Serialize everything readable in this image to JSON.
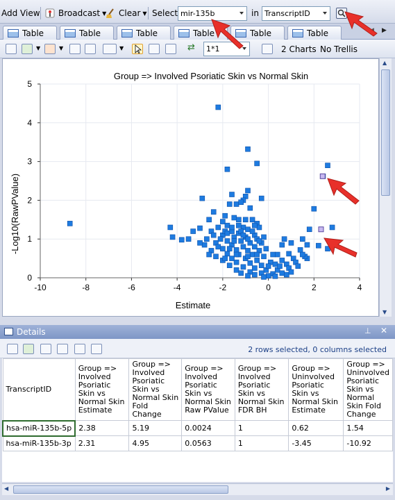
{
  "toolbar": {
    "add_view": "Add View",
    "broadcast": "Broadcast",
    "clear": "Clear",
    "select_label": "Select",
    "select_value": "mir-135b",
    "in_label": "in",
    "in_value": "TranscriptID"
  },
  "tabs": [
    {
      "label": "Table"
    },
    {
      "label": "Table"
    },
    {
      "label": "Table"
    },
    {
      "label": "Table"
    },
    {
      "label": "Table"
    },
    {
      "label": "Table"
    }
  ],
  "chart_toolbar": {
    "layout_value": "1*1",
    "charts_label": "2 Charts",
    "trellis_label": "No Trellis"
  },
  "chart_data": {
    "type": "scatter",
    "title": "Group => Involved Psoriatic Skin vs Normal Skin",
    "xlabel": "Estimate",
    "ylabel": "-Log10(RawPValue)",
    "xlim": [
      -10,
      4
    ],
    "ylim": [
      0,
      5
    ],
    "xticks": [
      "-10",
      "-8",
      "-6",
      "-4",
      "-2",
      "0",
      "2",
      "4"
    ],
    "yticks": [
      "0",
      "1",
      "2",
      "3",
      "4",
      "5"
    ],
    "grid": true,
    "colors": {
      "point": "#1e7be0",
      "point_edge": "#0b4fa8",
      "selected": "#c7b8f0",
      "selected_edge": "#5a4aa0"
    },
    "points": [
      [
        -8.7,
        1.4
      ],
      [
        -2.2,
        4.4
      ],
      [
        -0.9,
        3.32
      ],
      [
        -0.5,
        2.95
      ],
      [
        -1.8,
        2.8
      ],
      [
        2.6,
        2.9
      ],
      [
        2.4,
        2.62
      ],
      [
        -0.9,
        2.25
      ],
      [
        -1.0,
        2.1
      ],
      [
        -1.6,
        2.15
      ],
      [
        -2.9,
        2.05
      ],
      [
        -1.1,
        2.0
      ],
      [
        -0.3,
        2.05
      ],
      [
        -1.7,
        1.9
      ],
      [
        -1.4,
        1.9
      ],
      [
        -1.2,
        1.95
      ],
      [
        -0.8,
        1.8
      ],
      [
        -2.4,
        1.7
      ],
      [
        2.0,
        1.78
      ],
      [
        -1.9,
        1.6
      ],
      [
        -0.7,
        1.5
      ],
      [
        -2.0,
        1.45
      ],
      [
        -2.6,
        1.5
      ],
      [
        -1.5,
        1.55
      ],
      [
        -1.3,
        1.5
      ],
      [
        -0.5,
        1.4
      ],
      [
        -1.8,
        1.35
      ],
      [
        -2.2,
        1.3
      ],
      [
        -4.3,
        1.3
      ],
      [
        -3.0,
        1.28
      ],
      [
        -1.1,
        1.3
      ],
      [
        -0.9,
        1.25
      ],
      [
        -0.4,
        1.3
      ],
      [
        2.8,
        1.3
      ],
      [
        -2.5,
        1.2
      ],
      [
        -1.6,
        1.2
      ],
      [
        -1.3,
        1.15
      ],
      [
        -0.6,
        1.1
      ],
      [
        1.8,
        1.25
      ],
      [
        -3.3,
        1.2
      ],
      [
        -2.0,
        1.1
      ],
      [
        -1.5,
        1.05
      ],
      [
        -1.0,
        1.05
      ],
      [
        -0.5,
        1.0
      ],
      [
        -3.5,
        1.0
      ],
      [
        -2.7,
        1.0
      ],
      [
        -4.2,
        1.05
      ],
      [
        -3.8,
        0.98
      ],
      [
        -1.8,
        0.95
      ],
      [
        -1.2,
        0.95
      ],
      [
        -0.8,
        0.9
      ],
      [
        -0.3,
        0.9
      ],
      [
        0.7,
        1.0
      ],
      [
        1.5,
        1.0
      ],
      [
        -2.3,
        0.9
      ],
      [
        -1.6,
        0.85
      ],
      [
        -1.1,
        0.8
      ],
      [
        -0.6,
        0.8
      ],
      [
        -2.8,
        0.85
      ],
      [
        -2.0,
        0.75
      ],
      [
        -1.4,
        0.72
      ],
      [
        -0.9,
        0.7
      ],
      [
        -0.4,
        0.7
      ],
      [
        0.6,
        0.85
      ],
      [
        1.0,
        0.9
      ],
      [
        1.7,
        0.85
      ],
      [
        2.2,
        0.83
      ],
      [
        2.6,
        0.75
      ],
      [
        -2.5,
        0.7
      ],
      [
        -1.8,
        0.62
      ],
      [
        -1.3,
        0.6
      ],
      [
        -0.7,
        0.6
      ],
      [
        -0.2,
        0.55
      ],
      [
        0.4,
        0.6
      ],
      [
        0.9,
        0.62
      ],
      [
        1.4,
        0.72
      ],
      [
        1.7,
        0.5
      ],
      [
        1.6,
        0.55
      ],
      [
        -2.3,
        0.55
      ],
      [
        -1.6,
        0.5
      ],
      [
        -1.0,
        0.5
      ],
      [
        -0.5,
        0.45
      ],
      [
        0.1,
        0.4
      ],
      [
        0.6,
        0.45
      ],
      [
        1.1,
        0.5
      ],
      [
        -2.0,
        0.45
      ],
      [
        -1.4,
        0.4
      ],
      [
        -0.8,
        0.38
      ],
      [
        -0.3,
        0.32
      ],
      [
        0.3,
        0.35
      ],
      [
        0.8,
        0.35
      ],
      [
        1.2,
        0.4
      ],
      [
        -1.7,
        0.32
      ],
      [
        -1.1,
        0.28
      ],
      [
        -0.6,
        0.25
      ],
      [
        -0.1,
        0.2
      ],
      [
        0.4,
        0.2
      ],
      [
        0.9,
        0.25
      ],
      [
        -1.4,
        0.2
      ],
      [
        -0.8,
        0.15
      ],
      [
        -0.3,
        0.12
      ],
      [
        0.2,
        0.1
      ],
      [
        0.6,
        0.12
      ],
      [
        -0.6,
        0.08
      ],
      [
        0.0,
        0.05
      ],
      [
        -0.2,
        0.02
      ],
      [
        0.3,
        0.04
      ],
      [
        -0.9,
        0.05
      ],
      [
        0.8,
        0.08
      ],
      [
        1.0,
        0.15
      ],
      [
        -1.2,
        0.12
      ],
      [
        0.5,
        0.3
      ],
      [
        -1.9,
        1.2
      ],
      [
        -2.1,
        1.0
      ],
      [
        -1.0,
        1.5
      ],
      [
        -1.6,
        1.3
      ],
      [
        -0.7,
        1.2
      ],
      [
        -1.2,
        1.2
      ],
      [
        -0.9,
        1.0
      ],
      [
        -1.5,
        0.95
      ],
      [
        -2.2,
        0.8
      ],
      [
        -1.7,
        0.75
      ],
      [
        -0.4,
        0.95
      ],
      [
        -0.1,
        0.75
      ],
      [
        -1.9,
        0.5
      ],
      [
        -2.6,
        0.6
      ],
      [
        -3.0,
        0.9
      ],
      [
        -1.3,
        1.35
      ],
      [
        -0.6,
        1.35
      ],
      [
        -1.8,
        1.15
      ],
      [
        -1.1,
        1.1
      ],
      [
        0.2,
        0.6
      ],
      [
        1.3,
        0.3
      ],
      [
        -2.4,
        1.1
      ],
      [
        -0.2,
        1.05
      ],
      [
        -1.4,
        0.6
      ],
      [
        -0.9,
        0.55
      ],
      [
        0.0,
        0.3
      ],
      [
        1.5,
        0.6
      ],
      [
        -0.5,
        0.6
      ]
    ],
    "selected_points": [
      [
        2.38,
        2.62
      ],
      [
        2.31,
        1.25
      ]
    ]
  },
  "details": {
    "title": "Details",
    "status": "2 rows selected, 0 columns selected",
    "columns": [
      "TranscriptID",
      "Group => Involved Psoriatic Skin vs Normal Skin Estimate",
      "Group => Involved Psoriatic Skin vs Normal Skin Fold Change",
      "Group => Involved Psoriatic Skin vs Normal Skin Raw PValue",
      "Group => Involved Psoriatic Skin vs Normal Skin FDR BH",
      "Group => Uninvolved Psoriatic Skin vs Normal Skin Estimate",
      "Group => Uninvolved Psoriatic Skin vs Normal Skin Fold Change"
    ],
    "rows": [
      [
        "hsa-miR-135b-5p",
        "2.38",
        "5.19",
        "0.0024",
        "1",
        "0.62",
        "1.54"
      ],
      [
        "hsa-miR-135b-3p",
        "2.31",
        "4.95",
        "0.0563",
        "1",
        "-3.45",
        "-10.92"
      ]
    ]
  }
}
